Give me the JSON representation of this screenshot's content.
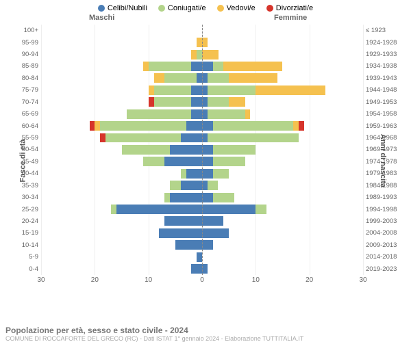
{
  "chart": {
    "type": "population-pyramid",
    "title": "Popolazione per età, sesso e stato civile - 2024",
    "subtitle": "COMUNE DI ROCCAFORTE DEL GRECO (RC) - Dati ISTAT 1° gennaio 2024 - Elaborazione TUTTITALIA.IT",
    "header_male": "Maschi",
    "header_female": "Femmine",
    "left_axis_title": "Fasce di età",
    "right_axis_title": "Anni di nascita",
    "xlim": [
      -30,
      30
    ],
    "xtick_step": 10,
    "xticks": [
      30,
      20,
      10,
      0,
      0,
      10,
      20,
      30
    ],
    "legend": [
      {
        "label": "Celibi/Nubili",
        "color": "#4a7db5"
      },
      {
        "label": "Coniugati/e",
        "color": "#b3d48b"
      },
      {
        "label": "Vedovi/e",
        "color": "#f5c14f"
      },
      {
        "label": "Divorziati/e",
        "color": "#d6342b"
      }
    ],
    "colors": {
      "single": "#4a7db5",
      "married": "#b3d48b",
      "widowed": "#f5c14f",
      "divorced": "#d6342b",
      "grid": "#eeeeee",
      "center_line": "#888888",
      "background": "#ffffff"
    },
    "bar_height_ratio": 0.8,
    "row_font_size": 9.5,
    "legend_font_size": 11,
    "rows": [
      {
        "age": "100+",
        "birth": "≤ 1923",
        "m": {
          "single": 0,
          "married": 0,
          "widowed": 0,
          "divorced": 0
        },
        "f": {
          "single": 0,
          "married": 0,
          "widowed": 0,
          "divorced": 0
        }
      },
      {
        "age": "95-99",
        "birth": "1924-1928",
        "m": {
          "single": 0,
          "married": 0,
          "widowed": 1,
          "divorced": 0
        },
        "f": {
          "single": 0,
          "married": 0,
          "widowed": 1,
          "divorced": 0
        }
      },
      {
        "age": "90-94",
        "birth": "1929-1933",
        "m": {
          "single": 0,
          "married": 1,
          "widowed": 1,
          "divorced": 0
        },
        "f": {
          "single": 0,
          "married": 0,
          "widowed": 3,
          "divorced": 0
        }
      },
      {
        "age": "85-89",
        "birth": "1934-1938",
        "m": {
          "single": 2,
          "married": 8,
          "widowed": 1,
          "divorced": 0
        },
        "f": {
          "single": 2,
          "married": 2,
          "widowed": 11,
          "divorced": 0
        }
      },
      {
        "age": "80-84",
        "birth": "1939-1943",
        "m": {
          "single": 1,
          "married": 6,
          "widowed": 2,
          "divorced": 0
        },
        "f": {
          "single": 1,
          "married": 4,
          "widowed": 9,
          "divorced": 0
        }
      },
      {
        "age": "75-79",
        "birth": "1944-1948",
        "m": {
          "single": 2,
          "married": 7,
          "widowed": 1,
          "divorced": 0
        },
        "f": {
          "single": 1,
          "married": 9,
          "widowed": 13,
          "divorced": 0
        }
      },
      {
        "age": "70-74",
        "birth": "1949-1953",
        "m": {
          "single": 2,
          "married": 7,
          "widowed": 0,
          "divorced": 1
        },
        "f": {
          "single": 1,
          "married": 4,
          "widowed": 3,
          "divorced": 0
        }
      },
      {
        "age": "65-69",
        "birth": "1954-1958",
        "m": {
          "single": 2,
          "married": 12,
          "widowed": 0,
          "divorced": 0
        },
        "f": {
          "single": 1,
          "married": 7,
          "widowed": 1,
          "divorced": 0
        }
      },
      {
        "age": "60-64",
        "birth": "1959-1963",
        "m": {
          "single": 3,
          "married": 16,
          "widowed": 1,
          "divorced": 1
        },
        "f": {
          "single": 2,
          "married": 15,
          "widowed": 1,
          "divorced": 1
        }
      },
      {
        "age": "55-59",
        "birth": "1964-1968",
        "m": {
          "single": 4,
          "married": 14,
          "widowed": 0,
          "divorced": 1
        },
        "f": {
          "single": 1,
          "married": 17,
          "widowed": 0,
          "divorced": 0
        }
      },
      {
        "age": "50-54",
        "birth": "1969-1973",
        "m": {
          "single": 6,
          "married": 9,
          "widowed": 0,
          "divorced": 0
        },
        "f": {
          "single": 2,
          "married": 8,
          "widowed": 0,
          "divorced": 0
        }
      },
      {
        "age": "45-49",
        "birth": "1974-1978",
        "m": {
          "single": 7,
          "married": 4,
          "widowed": 0,
          "divorced": 0
        },
        "f": {
          "single": 2,
          "married": 6,
          "widowed": 0,
          "divorced": 0
        }
      },
      {
        "age": "40-44",
        "birth": "1979-1983",
        "m": {
          "single": 3,
          "married": 1,
          "widowed": 0,
          "divorced": 0
        },
        "f": {
          "single": 2,
          "married": 3,
          "widowed": 0,
          "divorced": 0
        }
      },
      {
        "age": "35-39",
        "birth": "1984-1988",
        "m": {
          "single": 4,
          "married": 2,
          "widowed": 0,
          "divorced": 0
        },
        "f": {
          "single": 1,
          "married": 2,
          "widowed": 0,
          "divorced": 0
        }
      },
      {
        "age": "30-34",
        "birth": "1989-1993",
        "m": {
          "single": 6,
          "married": 1,
          "widowed": 0,
          "divorced": 0
        },
        "f": {
          "single": 2,
          "married": 4,
          "widowed": 0,
          "divorced": 0
        }
      },
      {
        "age": "25-29",
        "birth": "1994-1998",
        "m": {
          "single": 16,
          "married": 1,
          "widowed": 0,
          "divorced": 0
        },
        "f": {
          "single": 10,
          "married": 2,
          "widowed": 0,
          "divorced": 0
        }
      },
      {
        "age": "20-24",
        "birth": "1999-2003",
        "m": {
          "single": 7,
          "married": 0,
          "widowed": 0,
          "divorced": 0
        },
        "f": {
          "single": 4,
          "married": 0,
          "widowed": 0,
          "divorced": 0
        }
      },
      {
        "age": "15-19",
        "birth": "2004-2008",
        "m": {
          "single": 8,
          "married": 0,
          "widowed": 0,
          "divorced": 0
        },
        "f": {
          "single": 5,
          "married": 0,
          "widowed": 0,
          "divorced": 0
        }
      },
      {
        "age": "10-14",
        "birth": "2009-2013",
        "m": {
          "single": 5,
          "married": 0,
          "widowed": 0,
          "divorced": 0
        },
        "f": {
          "single": 2,
          "married": 0,
          "widowed": 0,
          "divorced": 0
        }
      },
      {
        "age": "5-9",
        "birth": "2014-2018",
        "m": {
          "single": 1,
          "married": 0,
          "widowed": 0,
          "divorced": 0
        },
        "f": {
          "single": 0,
          "married": 0,
          "widowed": 0,
          "divorced": 0
        }
      },
      {
        "age": "0-4",
        "birth": "2019-2023",
        "m": {
          "single": 2,
          "married": 0,
          "widowed": 0,
          "divorced": 0
        },
        "f": {
          "single": 1,
          "married": 0,
          "widowed": 0,
          "divorced": 0
        }
      }
    ]
  }
}
